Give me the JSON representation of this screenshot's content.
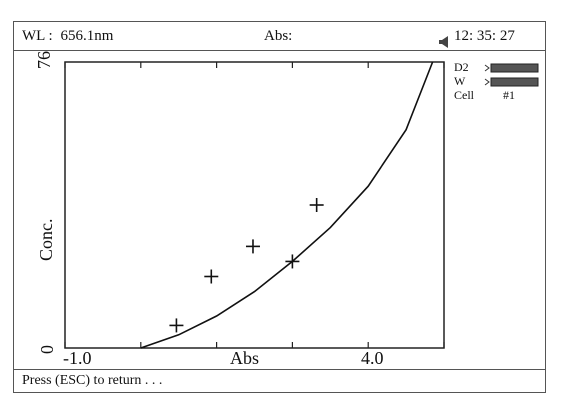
{
  "header": {
    "wl_label": "WL :",
    "wl_value": "656.1nm",
    "abs_label": "Abs:",
    "speaker_icon": "speaker-icon",
    "time": "12: 35: 27"
  },
  "side_panel": {
    "lamps": [
      {
        "name": "D2",
        "indicator_icon": "lamp-status-icon"
      },
      {
        "name": "W",
        "indicator_icon": "lamp-status-icon"
      }
    ],
    "cell_label": "Cell",
    "cell_value": "#1"
  },
  "footer": {
    "message": "Press  (ESC)  to return . . ."
  },
  "chart_data": {
    "type": "scatter",
    "xlabel": "Abs",
    "ylabel": "Conc.",
    "xlim": [
      -1.0,
      4.0
    ],
    "ylim": [
      0,
      76
    ],
    "x_tick_labels": [
      "-1.0",
      "4.0"
    ],
    "y_tick_labels": [
      "0",
      "76"
    ],
    "points": [
      {
        "x": 0.47,
        "y": 6
      },
      {
        "x": 0.93,
        "y": 19
      },
      {
        "x": 1.48,
        "y": 27
      },
      {
        "x": 2.0,
        "y": 23
      },
      {
        "x": 2.32,
        "y": 38
      }
    ],
    "curve": [
      {
        "x": 0.0,
        "y": 0
      },
      {
        "x": 0.5,
        "y": 3.5
      },
      {
        "x": 1.0,
        "y": 8.5
      },
      {
        "x": 1.5,
        "y": 15
      },
      {
        "x": 2.0,
        "y": 23
      },
      {
        "x": 2.5,
        "y": 32
      },
      {
        "x": 3.0,
        "y": 43
      },
      {
        "x": 3.5,
        "y": 58
      },
      {
        "x": 3.85,
        "y": 76
      }
    ]
  }
}
